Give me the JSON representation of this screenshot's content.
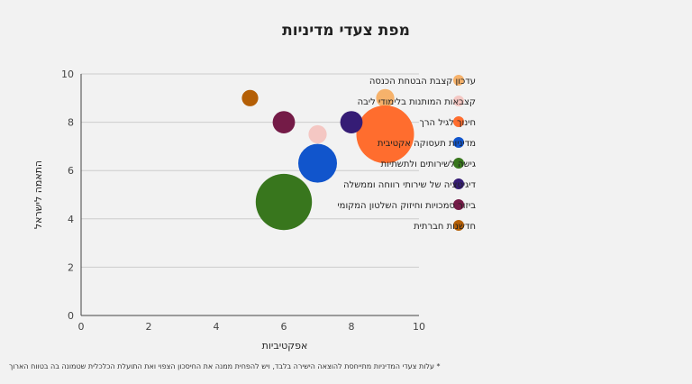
{
  "chart_data": {
    "type": "bubble",
    "title": "מפת צעדי מדיניות",
    "xlabel": "אפקטיביות",
    "ylabel": "התאמה לישראל",
    "xlim": [
      0,
      10
    ],
    "ylim": [
      0,
      10
    ],
    "x_ticks": [
      0,
      2,
      4,
      6,
      8,
      10
    ],
    "y_ticks": [
      0,
      2,
      4,
      6,
      8,
      10
    ],
    "grid": "horizontal",
    "legend_position": "right",
    "series": [
      {
        "name": "עדכון קצבת הבטחת הכנסה",
        "color": "#f6b26b",
        "x": 9,
        "y": 9,
        "size": 1
      },
      {
        "name": "קצבאות המותנות בלימודי ליבה",
        "color": "#f4c7c3",
        "x": 7,
        "y": 7.5,
        "size": 1
      },
      {
        "name": "חינוך לגיל הרך",
        "color": "#ff6d2e",
        "x": 9,
        "y": 7.5,
        "size": 10
      },
      {
        "name": "מדיניות תעסוקה אקטיבית",
        "color": "#1155cc",
        "x": 7,
        "y": 6.3,
        "size": 4.5
      },
      {
        "name": "גישה לשירותים ולתשתיות",
        "color": "#38761d",
        "x": 6,
        "y": 4.7,
        "size": 9.5
      },
      {
        "name": "דיגיטציה של שירותי רווחה וממשלה",
        "color": "#351c75",
        "x": 8,
        "y": 8,
        "size": 1.5
      },
      {
        "name": "ביזור סמכויות וחיזוק השלטון המקומי",
        "color": "#741b47",
        "x": 6,
        "y": 8,
        "size": 1.5
      },
      {
        "name": "חדשנות חברתית",
        "color": "#b45f06",
        "x": 5,
        "y": 9,
        "size": 0.8
      }
    ]
  },
  "footnote": "* עלות צעדי המדיניות מתייחסת להוצאה הישירה בלבד, ויש להפחית ממנה את החיסכון הצפוי ואת התועלת הכלכלית שטמונה בה בטווח הארוך"
}
